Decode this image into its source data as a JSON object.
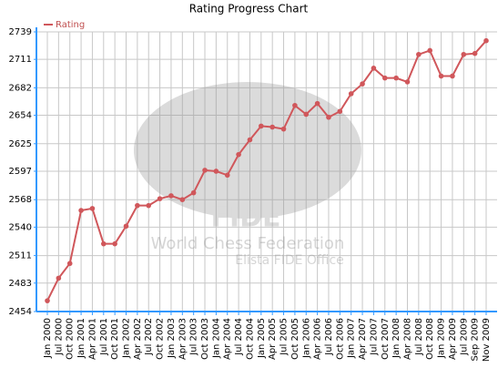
{
  "chart_data": {
    "type": "line",
    "title": "Rating Progress Chart",
    "categories": [
      "Jan 2000",
      "Jul 2000",
      "Oct 2000",
      "Jan 2001",
      "Apr 2001",
      "Jul 2001",
      "Oct 2001",
      "Jan 2002",
      "Apr 2002",
      "Jul 2002",
      "Oct 2002",
      "Jan 2003",
      "Apr 2003",
      "Jul 2003",
      "Oct 2003",
      "Jan 2004",
      "Apr 2004",
      "Jul 2004",
      "Oct 2004",
      "Jan 2005",
      "Apr 2005",
      "Jul 2005",
      "Oct 2005",
      "Jan 2006",
      "Apr 2006",
      "Jul 2006",
      "Oct 2006",
      "Jan 2007",
      "Apr 2007",
      "Jul 2007",
      "Oct 2007",
      "Jan 2008",
      "Apr 2008",
      "Jul 2008",
      "Oct 2008",
      "Jan 2009",
      "Apr 2009",
      "Jul 2009",
      "Sep 2009",
      "Nov 2009"
    ],
    "series": [
      {
        "name": "Rating",
        "color": "#d0575b",
        "values": [
          2465,
          2488,
          2503,
          2557,
          2559,
          2523,
          2523,
          2541,
          2562,
          2562,
          2569,
          2572,
          2568,
          2575,
          2598,
          2597,
          2593,
          2614,
          2629,
          2643,
          2642,
          2640,
          2664,
          2655,
          2666,
          2652,
          2658,
          2676,
          2686,
          2702,
          2692,
          2692,
          2688,
          2716,
          2720,
          2694,
          2694,
          2716,
          2717,
          2730
        ]
      }
    ],
    "ylim": [
      2454,
      2739
    ],
    "yticks": [
      2454,
      2483,
      2511,
      2540,
      2568,
      2597,
      2625,
      2654,
      2682,
      2711,
      2739
    ],
    "grid": true,
    "legend": "top-left",
    "watermark": {
      "logo": "FIDE",
      "line1": "World Chess Federation",
      "line2": "Elista FIDE Office"
    }
  }
}
